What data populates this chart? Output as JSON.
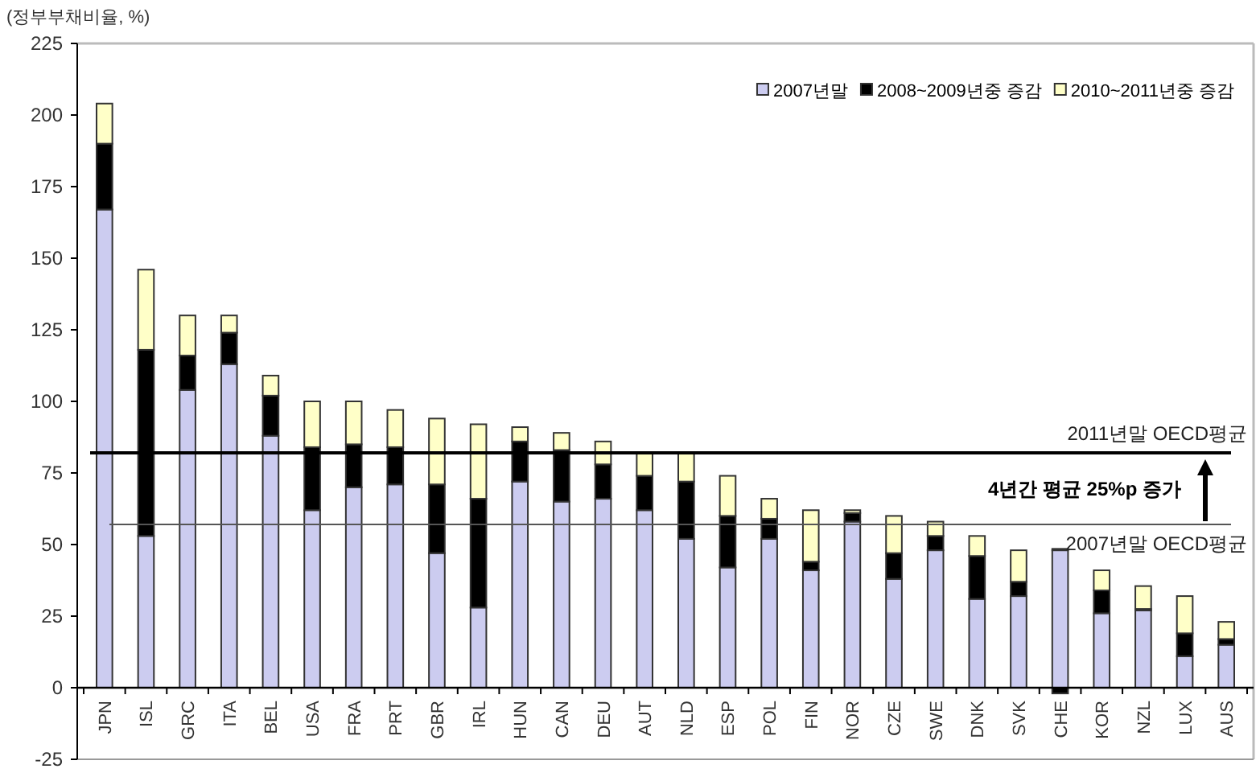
{
  "chart_data": {
    "type": "bar",
    "stacked": true,
    "ylabel": "(정부부채비율, %)",
    "categories": [
      "JPN",
      "ISL",
      "GRC",
      "ITA",
      "BEL",
      "USA",
      "FRA",
      "PRT",
      "GBR",
      "IRL",
      "HUN",
      "CAN",
      "DEU",
      "AUT",
      "NLD",
      "ESP",
      "POL",
      "FIN",
      "NOR",
      "CZE",
      "SWE",
      "DNK",
      "SVK",
      "CHE",
      "KOR",
      "NZL",
      "LUX",
      "AUS"
    ],
    "series": [
      {
        "name": "2007년말",
        "color": "#ccccf0",
        "values": [
          167,
          53,
          104,
          113,
          88,
          62,
          70,
          71,
          47,
          28,
          72,
          65,
          66,
          62,
          52,
          42,
          52,
          41,
          58,
          38,
          48,
          31,
          32,
          48,
          26,
          27,
          11,
          15
        ]
      },
      {
        "name": "2008~2009년중 증감",
        "color": "#000000",
        "values": [
          23,
          65,
          12,
          11,
          14,
          22,
          15,
          13,
          24,
          38,
          14,
          18,
          12,
          12,
          20,
          18,
          7,
          3,
          3,
          9,
          5,
          15,
          5,
          -2,
          8,
          0.5,
          8,
          2
        ]
      },
      {
        "name": "2010~2011년중 증감",
        "color": "#ffffc8",
        "values": [
          14,
          28,
          14,
          6,
          7,
          16,
          15,
          13,
          23,
          26,
          5,
          6,
          8,
          8,
          10,
          14,
          7,
          18,
          1,
          13,
          5,
          7,
          11,
          0.5,
          7,
          8,
          13,
          6
        ]
      }
    ],
    "ylim": [
      -25,
      225
    ],
    "yticks": [
      -25,
      0,
      25,
      50,
      75,
      100,
      125,
      150,
      175,
      200,
      225
    ],
    "ref_lines": [
      {
        "axis": "y",
        "value": 82,
        "label": "2011년말 OECD평균",
        "color": "#000000"
      },
      {
        "axis": "y",
        "value": 57,
        "label": "2007년말 OECD평균",
        "color": "#555555"
      }
    ],
    "annotations": [
      "4년간 평균 25%p 증가"
    ],
    "legend": "top right",
    "grid": false
  }
}
